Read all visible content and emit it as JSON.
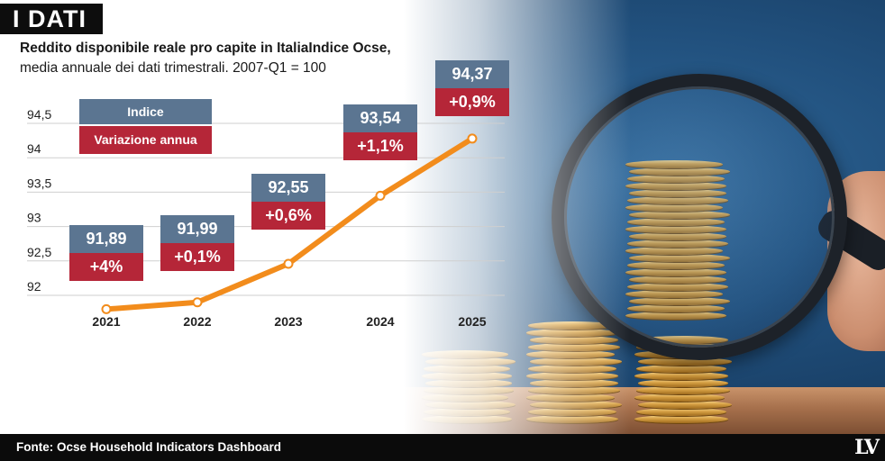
{
  "heading": "I DATI",
  "subtitle_line1": "Reddito disponibile reale pro capite in ItaliaIndice Ocse,",
  "subtitle_line2": "media annuale dei dati trimestrali. 2007-Q1 = 100",
  "legend": {
    "index_label": "Indice",
    "change_label": "Variazione annua"
  },
  "colors": {
    "line": "#f28c1c",
    "index_box": "#5b7591",
    "change_box": "#b52638",
    "grid": "#cfcfcf"
  },
  "chart_data": {
    "type": "line",
    "x": [
      "2021",
      "2022",
      "2023",
      "2024",
      "2025"
    ],
    "series": [
      {
        "values": [
          91.89,
          91.99,
          92.55,
          93.54,
          94.37
        ]
      }
    ],
    "value_labels": [
      "91,89",
      "91,99",
      "92,55",
      "93,54",
      "94,37"
    ],
    "change_labels": [
      "+4%",
      "+0,1%",
      "+0,6%",
      "+1,1%",
      "+0,9%"
    ],
    "y_ticks": [
      92,
      92.5,
      93,
      93.5,
      94,
      94.5
    ],
    "y_tick_labels": [
      "92",
      "92,5",
      "93",
      "93,5",
      "94",
      "94,5"
    ],
    "ylim": [
      91.95,
      94.6
    ],
    "grid": true,
    "legend_position": "top-left"
  },
  "footer": {
    "source": "Fonte: Ocse Household Indicators Dashboard",
    "logo": "LV"
  }
}
